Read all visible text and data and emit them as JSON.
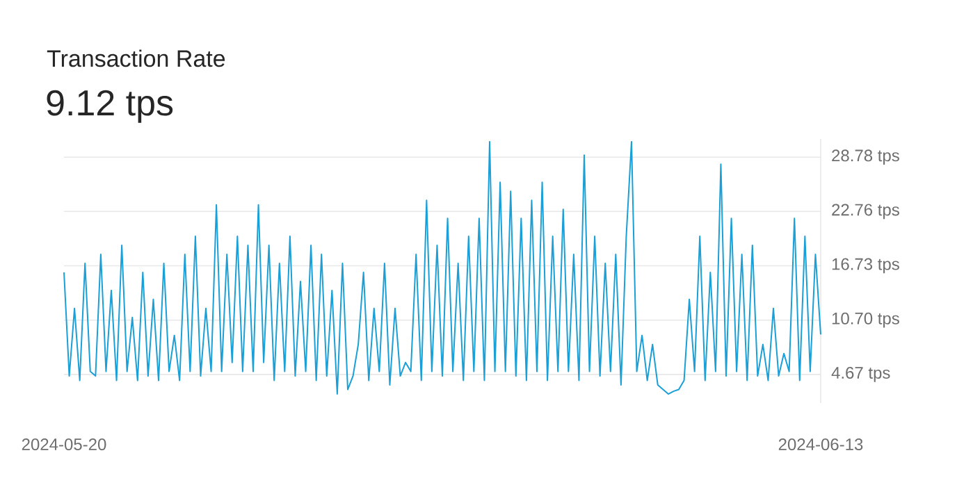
{
  "chart_data": {
    "type": "line",
    "title": "Transaction Rate",
    "subtitle": "9.12 tps",
    "xlim": [
      "2024-05-20",
      "2024-06-13"
    ],
    "xticks": [
      "2024-05-20",
      "2024-06-13"
    ],
    "yticks": [
      {
        "value": 4.67,
        "label": "4.67 tps"
      },
      {
        "value": 10.7,
        "label": "10.70 tps"
      },
      {
        "value": 16.73,
        "label": "16.73 tps"
      },
      {
        "value": 22.76,
        "label": "22.76 tps"
      },
      {
        "value": 28.78,
        "label": "28.78 tps"
      }
    ],
    "ylim": [
      1.5,
      30.8
    ],
    "grid": "y",
    "marker": "none",
    "line_style": "solid",
    "x": [
      "2024-05-20T00:00",
      "2024-05-20T04:00",
      "2024-05-20T08:00",
      "2024-05-20T12:00",
      "2024-05-20T16:00",
      "2024-05-20T20:00",
      "2024-05-21T00:00",
      "2024-05-21T04:00",
      "2024-05-21T08:00",
      "2024-05-21T12:00",
      "2024-05-21T16:00",
      "2024-05-21T20:00",
      "2024-05-22T00:00",
      "2024-05-22T04:00",
      "2024-05-22T08:00",
      "2024-05-22T12:00",
      "2024-05-22T16:00",
      "2024-05-22T20:00",
      "2024-05-23T00:00",
      "2024-05-23T04:00",
      "2024-05-23T08:00",
      "2024-05-23T12:00",
      "2024-05-23T16:00",
      "2024-05-23T20:00",
      "2024-05-24T00:00",
      "2024-05-24T04:00",
      "2024-05-24T08:00",
      "2024-05-24T12:00",
      "2024-05-24T16:00",
      "2024-05-24T20:00",
      "2024-05-25T00:00",
      "2024-05-25T04:00",
      "2024-05-25T08:00",
      "2024-05-25T12:00",
      "2024-05-25T16:00",
      "2024-05-25T20:00",
      "2024-05-26T00:00",
      "2024-05-26T04:00",
      "2024-05-26T08:00",
      "2024-05-26T12:00",
      "2024-05-26T16:00",
      "2024-05-26T20:00",
      "2024-05-27T00:00",
      "2024-05-27T04:00",
      "2024-05-27T08:00",
      "2024-05-27T12:00",
      "2024-05-27T16:00",
      "2024-05-27T20:00",
      "2024-05-28T00:00",
      "2024-05-28T04:00",
      "2024-05-28T08:00",
      "2024-05-28T12:00",
      "2024-05-28T16:00",
      "2024-05-28T20:00",
      "2024-05-29T00:00",
      "2024-05-29T04:00",
      "2024-05-29T08:00",
      "2024-05-29T12:00",
      "2024-05-29T16:00",
      "2024-05-29T20:00",
      "2024-05-30T00:00",
      "2024-05-30T04:00",
      "2024-05-30T08:00",
      "2024-05-30T12:00",
      "2024-05-30T16:00",
      "2024-05-30T20:00",
      "2024-05-31T00:00",
      "2024-05-31T04:00",
      "2024-05-31T08:00",
      "2024-05-31T12:00",
      "2024-05-31T16:00",
      "2024-05-31T20:00",
      "2024-06-01T00:00",
      "2024-06-01T04:00",
      "2024-06-01T08:00",
      "2024-06-01T12:00",
      "2024-06-01T16:00",
      "2024-06-01T20:00",
      "2024-06-02T00:00",
      "2024-06-02T04:00",
      "2024-06-02T08:00",
      "2024-06-02T12:00",
      "2024-06-02T16:00",
      "2024-06-02T20:00",
      "2024-06-03T00:00",
      "2024-06-03T04:00",
      "2024-06-03T08:00",
      "2024-06-03T12:00",
      "2024-06-03T16:00",
      "2024-06-03T20:00",
      "2024-06-04T00:00",
      "2024-06-04T04:00",
      "2024-06-04T08:00",
      "2024-06-04T12:00",
      "2024-06-04T16:00",
      "2024-06-04T20:00",
      "2024-06-05T00:00",
      "2024-06-05T04:00",
      "2024-06-05T08:00",
      "2024-06-05T12:00",
      "2024-06-05T16:00",
      "2024-06-05T20:00",
      "2024-06-06T00:00",
      "2024-06-06T04:00",
      "2024-06-06T08:00",
      "2024-06-06T12:00",
      "2024-06-06T16:00",
      "2024-06-06T20:00",
      "2024-06-07T00:00",
      "2024-06-07T04:00",
      "2024-06-07T08:00",
      "2024-06-07T12:00",
      "2024-06-07T16:00",
      "2024-06-07T20:00",
      "2024-06-08T00:00",
      "2024-06-08T04:00",
      "2024-06-08T08:00",
      "2024-06-08T12:00",
      "2024-06-08T16:00",
      "2024-06-08T20:00",
      "2024-06-09T00:00",
      "2024-06-09T04:00",
      "2024-06-09T08:00",
      "2024-06-09T12:00",
      "2024-06-09T16:00",
      "2024-06-09T20:00",
      "2024-06-10T00:00",
      "2024-06-10T04:00",
      "2024-06-10T08:00",
      "2024-06-10T12:00",
      "2024-06-10T16:00",
      "2024-06-10T20:00",
      "2024-06-11T00:00",
      "2024-06-11T04:00",
      "2024-06-11T08:00",
      "2024-06-11T12:00",
      "2024-06-11T16:00",
      "2024-06-11T20:00",
      "2024-06-12T00:00",
      "2024-06-12T04:00",
      "2024-06-12T08:00",
      "2024-06-12T12:00",
      "2024-06-12T16:00",
      "2024-06-12T20:00",
      "2024-06-13T00:00"
    ],
    "series": [
      {
        "color": "#1a9fd6",
        "values": [
          16,
          4.5,
          12,
          4,
          17,
          5,
          4.5,
          18,
          5,
          14,
          4,
          19,
          5,
          11,
          4,
          16,
          4.5,
          13,
          4,
          17,
          5,
          9,
          4,
          18,
          5,
          20,
          4.5,
          12,
          5,
          23.5,
          5,
          18,
          6,
          20,
          5,
          19,
          5,
          23.5,
          6,
          19,
          4,
          17,
          5,
          20,
          4.5,
          15,
          5,
          19,
          4,
          18,
          4.5,
          14,
          2.5,
          17,
          3,
          4.5,
          8,
          16,
          4,
          12,
          5,
          17,
          3.5,
          12,
          4.5,
          6,
          5,
          18,
          4,
          24,
          5,
          19,
          4.5,
          22,
          5,
          17,
          4,
          20,
          5,
          22,
          4,
          30.5,
          5,
          26,
          5,
          25,
          4.5,
          22,
          4,
          24,
          5,
          26,
          4,
          20,
          5,
          23,
          5,
          18,
          4,
          29,
          5,
          20,
          4.5,
          17,
          5,
          18,
          3.5,
          20,
          30.5,
          5,
          9,
          4,
          8,
          3.5,
          3,
          2.5,
          2.8,
          3,
          4,
          13,
          5,
          20,
          4,
          16,
          5,
          28,
          4.5,
          22,
          5,
          18,
          4,
          19,
          4.5,
          8,
          4,
          12,
          4.5,
          7,
          5,
          22,
          4,
          20,
          5,
          18,
          9.1
        ]
      }
    ]
  }
}
